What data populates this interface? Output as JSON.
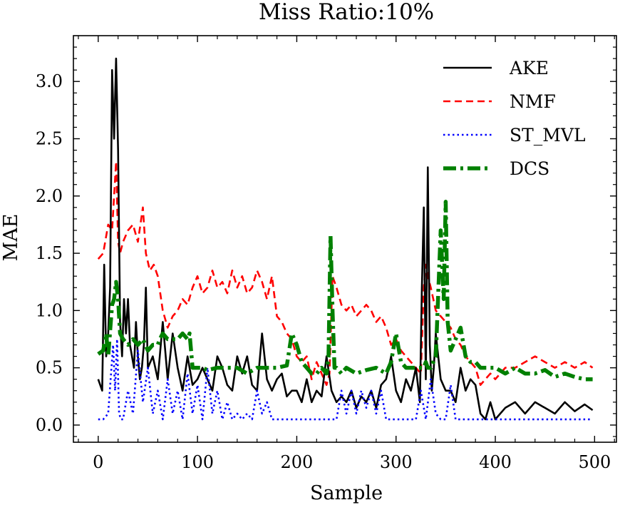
{
  "chart_data": {
    "type": "line",
    "title": "Miss Ratio:10%",
    "xlabel": "Sample",
    "ylabel": "MAE",
    "xlim": [
      -25,
      522
    ],
    "ylim": [
      -0.15,
      3.4
    ],
    "xticks": [
      0,
      100,
      200,
      300,
      400,
      500
    ],
    "xtick_labels": [
      "0",
      "100",
      "200",
      "300",
      "400",
      "500"
    ],
    "yticks": [
      0.0,
      0.5,
      1.0,
      1.5,
      2.0,
      2.5,
      3.0
    ],
    "ytick_labels": [
      "0.0",
      "0.5",
      "1.0",
      "1.5",
      "2.0",
      "2.5",
      "3.0"
    ],
    "grid": false,
    "legend_position": "top-right",
    "series": [
      {
        "name": "AKE",
        "color": "#000000",
        "style": "solid",
        "x": [
          0,
          2,
          4,
          6,
          8,
          10,
          12,
          14,
          16,
          18,
          20,
          22,
          24,
          26,
          28,
          30,
          32,
          34,
          36,
          38,
          40,
          42,
          44,
          46,
          48,
          50,
          55,
          60,
          65,
          70,
          75,
          80,
          85,
          90,
          95,
          100,
          105,
          110,
          115,
          120,
          125,
          130,
          135,
          140,
          145,
          150,
          155,
          160,
          165,
          170,
          175,
          180,
          185,
          190,
          195,
          200,
          205,
          210,
          215,
          220,
          225,
          230,
          235,
          240,
          245,
          250,
          255,
          260,
          265,
          270,
          275,
          280,
          285,
          290,
          295,
          300,
          305,
          310,
          315,
          320,
          324,
          326,
          328,
          330,
          332,
          334,
          336,
          338,
          340,
          345,
          350,
          355,
          360,
          365,
          370,
          375,
          380,
          385,
          390,
          395,
          400,
          410,
          420,
          430,
          440,
          450,
          460,
          470,
          480,
          490,
          498
        ],
        "y": [
          0.4,
          0.35,
          0.3,
          1.4,
          0.6,
          0.8,
          1.2,
          3.1,
          2.5,
          3.2,
          2.4,
          0.9,
          0.6,
          1.1,
          0.8,
          1.1,
          0.7,
          0.6,
          0.5,
          0.9,
          0.6,
          0.4,
          0.5,
          0.7,
          1.2,
          0.5,
          0.6,
          0.4,
          0.9,
          0.4,
          0.8,
          0.5,
          0.3,
          0.6,
          0.35,
          0.4,
          0.5,
          0.4,
          0.3,
          0.6,
          0.5,
          0.35,
          0.3,
          0.6,
          0.45,
          0.6,
          0.35,
          0.3,
          0.8,
          0.4,
          0.3,
          0.4,
          0.45,
          0.25,
          0.3,
          0.3,
          0.2,
          0.4,
          0.2,
          0.3,
          0.25,
          0.6,
          0.3,
          0.2,
          0.25,
          0.2,
          0.3,
          0.15,
          0.25,
          0.2,
          0.3,
          0.15,
          0.35,
          0.4,
          0.6,
          0.3,
          0.2,
          0.4,
          0.3,
          0.5,
          0.2,
          1.2,
          1.9,
          0.4,
          2.25,
          0.7,
          0.3,
          0.5,
          0.8,
          0.4,
          0.3,
          0.3,
          0.2,
          0.5,
          0.3,
          0.4,
          0.35,
          0.1,
          0.05,
          0.2,
          0.05,
          0.15,
          0.2,
          0.1,
          0.2,
          0.15,
          0.1,
          0.2,
          0.12,
          0.18,
          0.13
        ]
      },
      {
        "name": "NMF",
        "color": "#ff0000",
        "style": "dashed",
        "x": [
          0,
          5,
          10,
          14,
          16,
          18,
          20,
          22,
          25,
          30,
          35,
          40,
          45,
          48,
          52,
          56,
          60,
          65,
          70,
          75,
          80,
          85,
          90,
          95,
          100,
          105,
          110,
          115,
          120,
          125,
          130,
          135,
          140,
          145,
          150,
          155,
          160,
          165,
          170,
          175,
          180,
          185,
          190,
          195,
          200,
          205,
          210,
          215,
          220,
          225,
          230,
          233,
          236,
          240,
          245,
          250,
          255,
          260,
          265,
          270,
          275,
          280,
          285,
          290,
          295,
          300,
          305,
          310,
          315,
          320,
          325,
          328,
          330,
          332,
          335,
          340,
          345,
          350,
          355,
          360,
          365,
          370,
          375,
          380,
          385,
          390,
          395,
          400,
          410,
          420,
          430,
          440,
          450,
          460,
          470,
          480,
          490,
          498
        ],
        "y": [
          1.45,
          1.5,
          1.75,
          1.7,
          2.0,
          2.3,
          1.6,
          1.5,
          1.6,
          1.7,
          1.75,
          1.6,
          1.9,
          1.5,
          1.35,
          1.4,
          1.3,
          1.0,
          0.85,
          0.95,
          1.0,
          1.1,
          1.05,
          1.2,
          1.3,
          1.15,
          1.2,
          1.35,
          1.2,
          1.25,
          1.15,
          1.35,
          1.2,
          1.3,
          1.15,
          1.2,
          1.35,
          1.25,
          1.1,
          1.3,
          0.95,
          0.9,
          0.8,
          0.75,
          0.6,
          0.55,
          0.6,
          0.4,
          0.55,
          0.45,
          0.35,
          0.45,
          1.3,
          1.2,
          1.05,
          1.0,
          1.05,
          0.95,
          1.0,
          1.05,
          1.0,
          0.9,
          0.95,
          0.85,
          0.7,
          0.75,
          0.65,
          0.6,
          0.55,
          0.5,
          0.45,
          1.2,
          1.4,
          1.3,
          1.2,
          1.0,
          0.95,
          0.9,
          0.85,
          0.75,
          0.7,
          0.6,
          0.55,
          0.5,
          0.35,
          0.4,
          0.45,
          0.4,
          0.5,
          0.5,
          0.55,
          0.6,
          0.55,
          0.5,
          0.55,
          0.5,
          0.55,
          0.5
        ]
      },
      {
        "name": "ST_MVL",
        "color": "#0000ff",
        "style": "dotted",
        "x": [
          0,
          5,
          10,
          15,
          17,
          19,
          21,
          23,
          25,
          30,
          35,
          40,
          45,
          50,
          55,
          60,
          65,
          70,
          75,
          80,
          85,
          90,
          95,
          100,
          105,
          110,
          115,
          120,
          125,
          130,
          135,
          140,
          145,
          150,
          155,
          160,
          165,
          170,
          175,
          180,
          185,
          190,
          195,
          200,
          210,
          220,
          230,
          240,
          245,
          250,
          255,
          260,
          265,
          270,
          275,
          280,
          285,
          290,
          295,
          300,
          310,
          320,
          325,
          330,
          335,
          340,
          345,
          350,
          355,
          360,
          370,
          380,
          390,
          400,
          410,
          420,
          430,
          440,
          450,
          460,
          470,
          480,
          490,
          498
        ],
        "y": [
          0.05,
          0.05,
          0.1,
          0.7,
          0.3,
          0.75,
          0.1,
          0.05,
          0.05,
          0.3,
          0.1,
          0.65,
          0.2,
          0.5,
          0.1,
          0.3,
          0.05,
          0.4,
          0.1,
          0.3,
          0.05,
          0.45,
          0.1,
          0.35,
          0.05,
          0.5,
          0.1,
          0.3,
          0.05,
          0.2,
          0.05,
          0.1,
          0.05,
          0.1,
          0.05,
          0.3,
          0.1,
          0.2,
          0.05,
          0.05,
          0.05,
          0.05,
          0.05,
          0.05,
          0.05,
          0.05,
          0.05,
          0.05,
          0.3,
          0.1,
          0.3,
          0.1,
          0.3,
          0.15,
          0.3,
          0.1,
          0.3,
          0.05,
          0.05,
          0.05,
          0.05,
          0.05,
          0.3,
          0.05,
          0.4,
          0.1,
          0.05,
          0.05,
          0.35,
          0.05,
          0.05,
          0.05,
          0.05,
          0.05,
          0.05,
          0.05,
          0.05,
          0.05,
          0.05,
          0.05,
          0.05,
          0.05,
          0.05,
          0.05
        ]
      },
      {
        "name": "DCS",
        "color": "#008000",
        "style": "dashdot",
        "x": [
          0,
          5,
          8,
          10,
          14,
          16,
          18,
          20,
          22,
          25,
          30,
          35,
          40,
          45,
          50,
          55,
          60,
          62,
          65,
          70,
          75,
          80,
          85,
          90,
          92,
          95,
          100,
          105,
          110,
          120,
          130,
          140,
          150,
          160,
          170,
          180,
          190,
          195,
          200,
          205,
          210,
          215,
          220,
          225,
          230,
          232,
          234,
          236,
          238,
          240,
          245,
          250,
          260,
          270,
          280,
          290,
          295,
          300,
          305,
          310,
          320,
          325,
          328,
          330,
          332,
          335,
          340,
          345,
          348,
          350,
          352,
          355,
          360,
          365,
          370,
          375,
          380,
          385,
          390,
          400,
          410,
          420,
          430,
          440,
          450,
          460,
          470,
          480,
          490,
          498
        ],
        "y": [
          0.62,
          0.65,
          0.8,
          0.6,
          1.05,
          1.1,
          1.25,
          1.1,
          0.8,
          0.75,
          0.7,
          0.75,
          0.7,
          0.75,
          0.65,
          0.7,
          0.7,
          0.75,
          0.8,
          0.75,
          0.75,
          0.75,
          0.8,
          0.75,
          0.8,
          0.5,
          0.5,
          0.5,
          0.48,
          0.5,
          0.5,
          0.5,
          0.45,
          0.5,
          0.5,
          0.5,
          0.52,
          0.8,
          0.7,
          0.55,
          0.5,
          0.45,
          0.45,
          0.5,
          0.45,
          0.6,
          1.65,
          1.0,
          0.5,
          0.5,
          0.45,
          0.5,
          0.45,
          0.48,
          0.5,
          0.45,
          0.55,
          0.8,
          0.55,
          0.5,
          0.5,
          0.5,
          0.5,
          0.55,
          0.5,
          0.5,
          0.6,
          1.7,
          1.1,
          1.95,
          0.9,
          0.65,
          0.75,
          0.85,
          0.6,
          0.55,
          0.55,
          0.5,
          0.5,
          0.5,
          0.45,
          0.5,
          0.45,
          0.45,
          0.48,
          0.42,
          0.45,
          0.42,
          0.4,
          0.4
        ]
      }
    ]
  }
}
